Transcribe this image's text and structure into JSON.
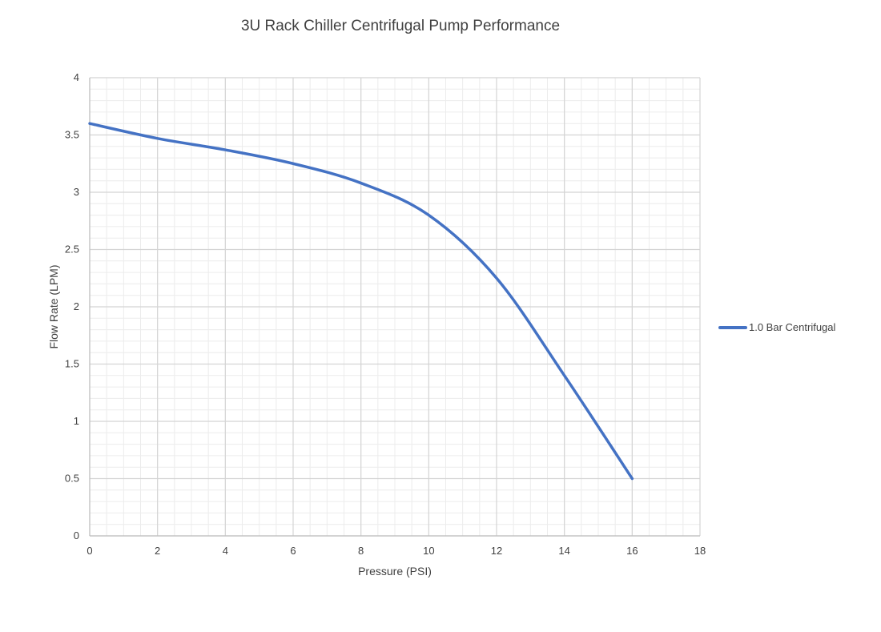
{
  "chart_data": {
    "type": "line",
    "title": "3U Rack Chiller Centrifugal Pump Performance",
    "xlabel": "Pressure (PSI)",
    "ylabel": "Flow Rate (LPM)",
    "xlim": [
      0,
      18
    ],
    "ylim": [
      0,
      4
    ],
    "x_ticks": [
      "0",
      "2",
      "4",
      "6",
      "8",
      "10",
      "12",
      "14",
      "16",
      "18"
    ],
    "y_ticks": [
      "0",
      "0.5",
      "1",
      "1.5",
      "2",
      "2.5",
      "3",
      "3.5",
      "4"
    ],
    "grid": true,
    "legend_position": "right",
    "series": [
      {
        "name": "1.0 Bar Centrifugal",
        "color": "#4472c4",
        "x": [
          0,
          2,
          4,
          6,
          8,
          10,
          12,
          14,
          16
        ],
        "y": [
          3.6,
          3.47,
          3.37,
          3.25,
          3.08,
          2.8,
          2.25,
          1.4,
          0.5
        ]
      }
    ]
  }
}
